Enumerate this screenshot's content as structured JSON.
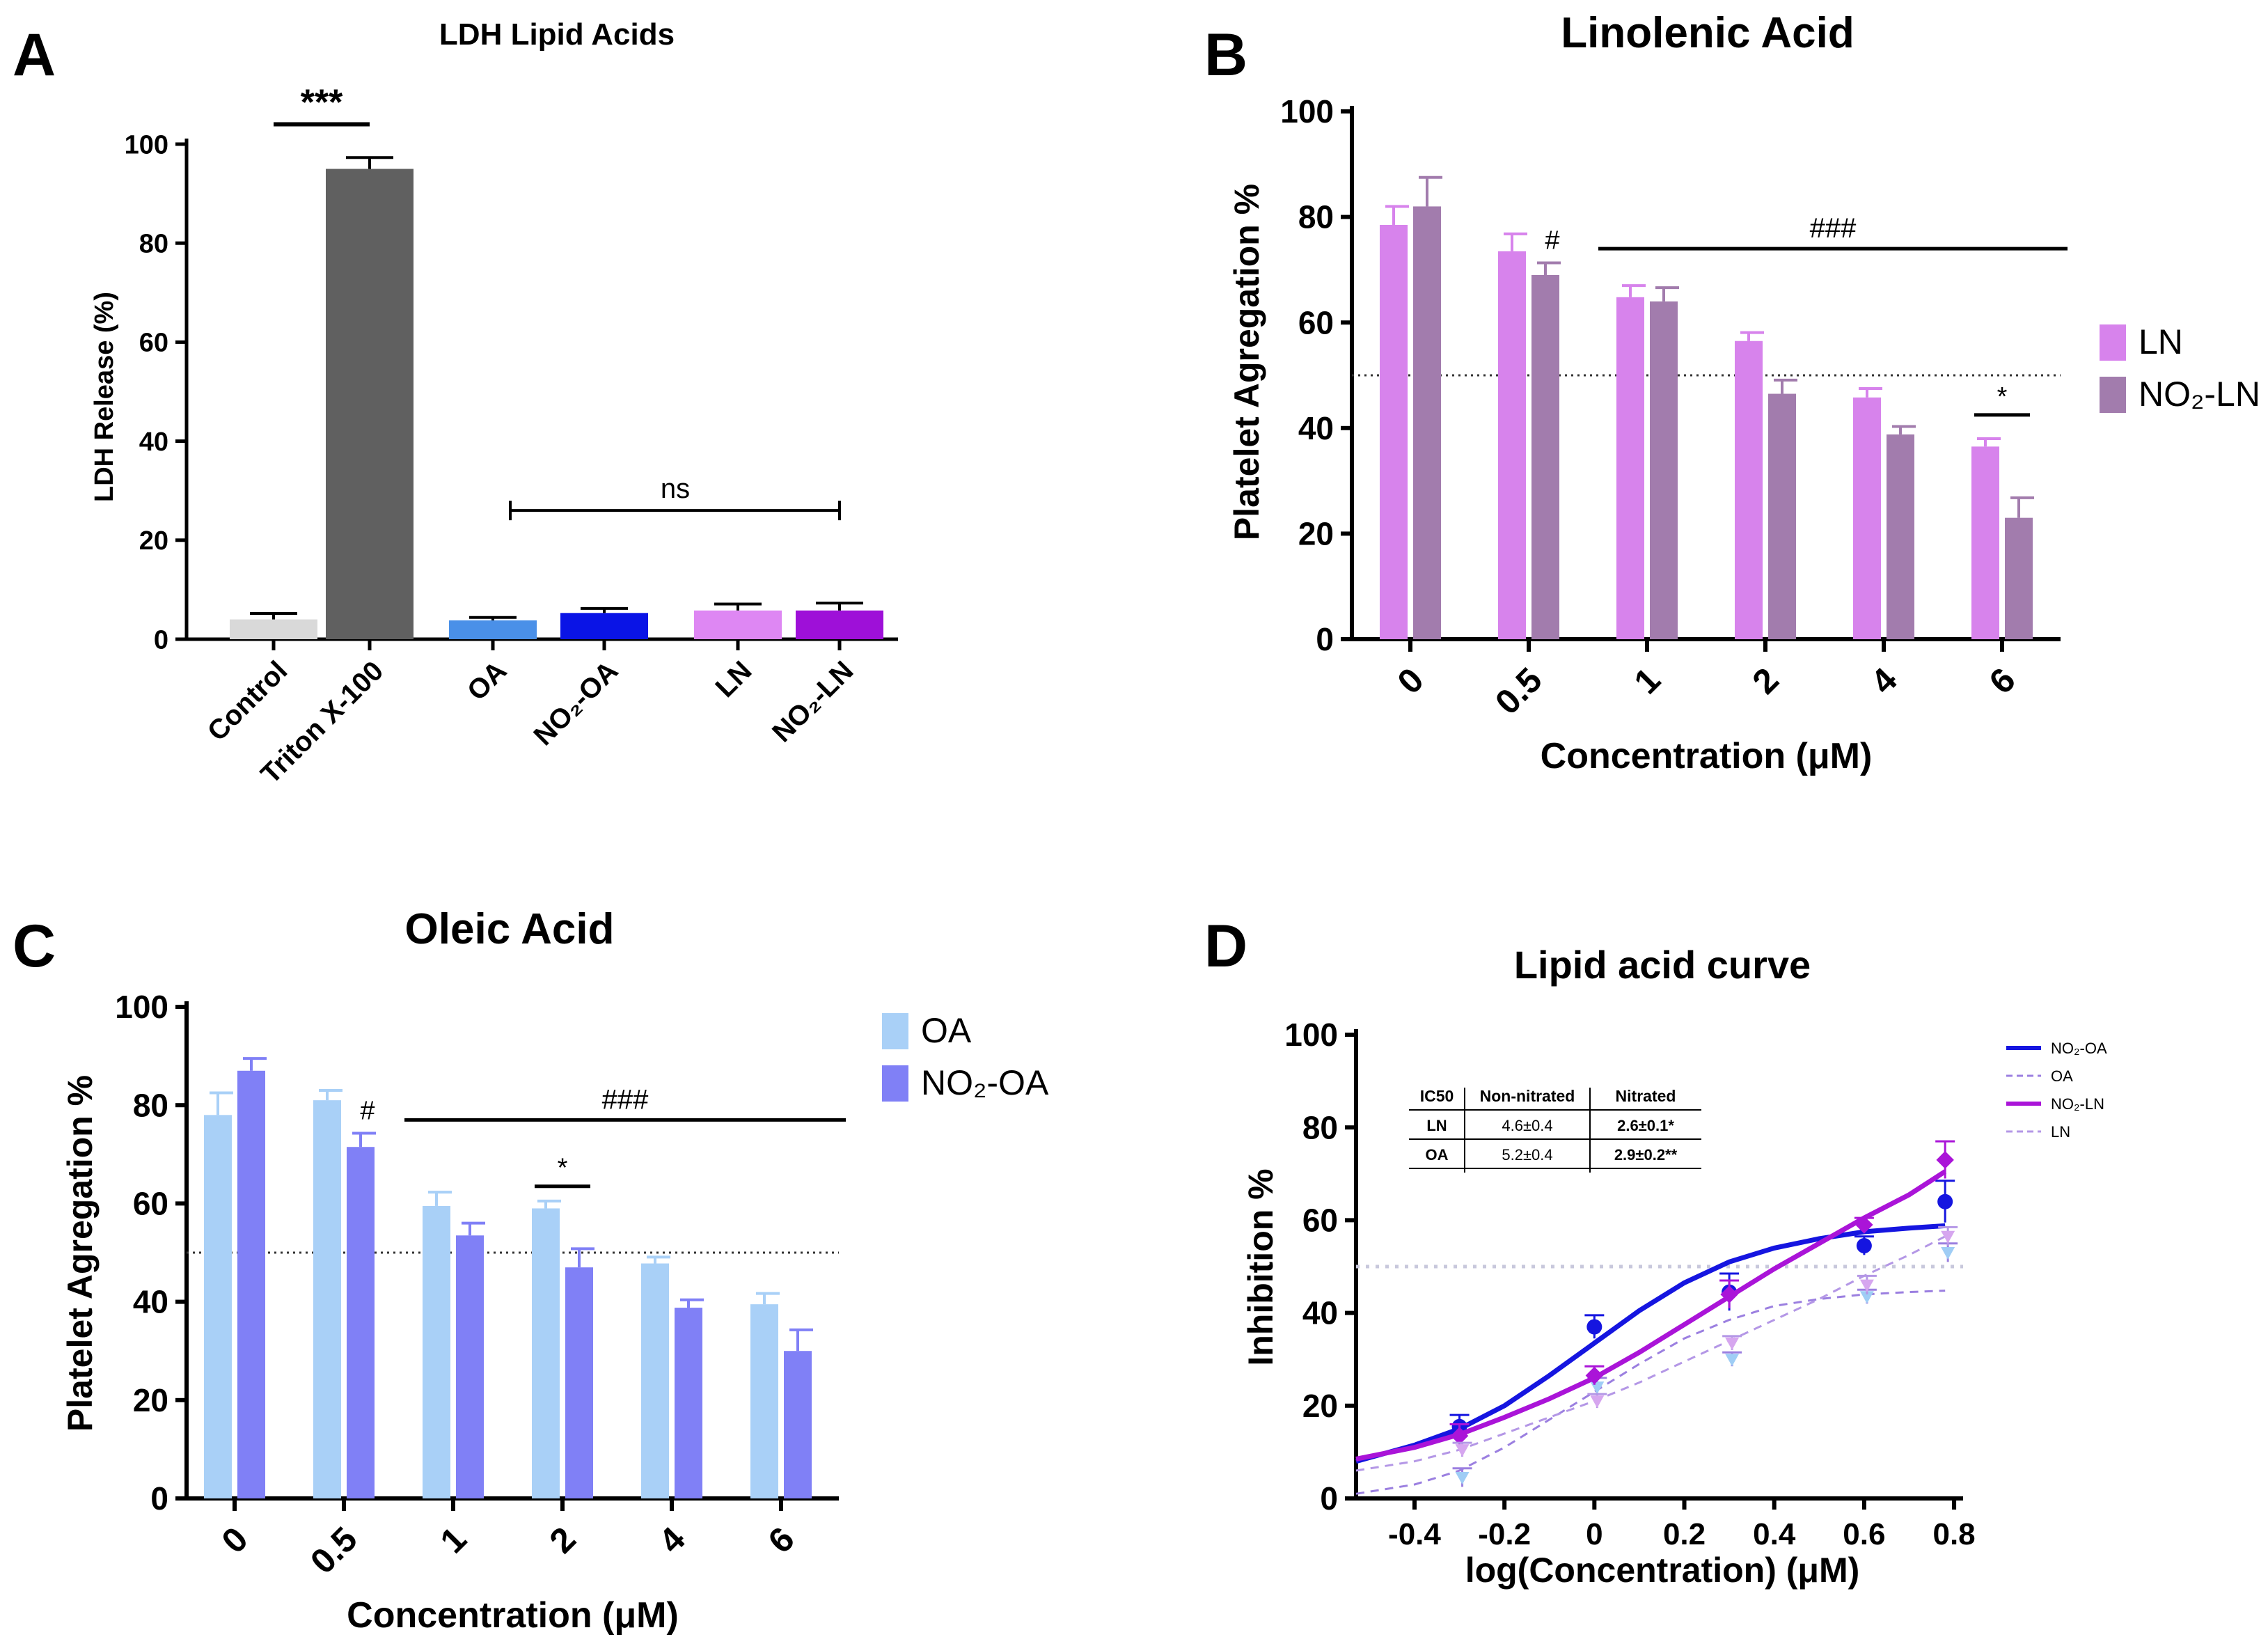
{
  "chart_data": [
    {
      "panel": "A",
      "type": "bar",
      "title": "LDH Lipid Acids",
      "ylabel": "LDH Release (%)",
      "xlabel": "",
      "ylim": [
        0,
        100
      ],
      "yticks": [
        0,
        20,
        40,
        60,
        80,
        100
      ],
      "categories": [
        "Control",
        "Triton X-100",
        "OA",
        "NO₂-OA",
        "LN",
        "NO₂-LN"
      ],
      "values": [
        4,
        95,
        3.8,
        5.3,
        5.8,
        5.8
      ],
      "errors": [
        1.2,
        2.3,
        0.6,
        0.9,
        1.3,
        1.5
      ],
      "colors": [
        "#d9d9d9",
        "#606060",
        "#4a90e8",
        "#0a14e6",
        "#de87f3",
        "#9e10d8"
      ],
      "annotations": [
        {
          "text": "***",
          "between": [
            "Control",
            "Triton X-100"
          ],
          "y": 104
        },
        {
          "text": "ns",
          "between": [
            "OA",
            "NO₂-LN"
          ],
          "y": 26
        }
      ]
    },
    {
      "panel": "B",
      "type": "bar",
      "title": "Linolenic Acid",
      "xlabel": "Concentration (μM)",
      "ylabel": "Platelet Agregation %",
      "ylim": [
        0,
        100
      ],
      "yticks": [
        0,
        20,
        40,
        60,
        80,
        100
      ],
      "categories": [
        "0",
        "0.5",
        "1",
        "2",
        "4",
        "6"
      ],
      "reference_line": 50,
      "series": [
        {
          "name": "LN",
          "color": "#d783ec",
          "values": [
            78.5,
            73.5,
            64.8,
            56.5,
            45.8,
            36.5
          ],
          "errors": [
            3.5,
            3.3,
            2.2,
            1.6,
            1.7,
            1.5
          ]
        },
        {
          "name": "NO₂-LN",
          "color": "#a27cad",
          "values": [
            82,
            69,
            64,
            46.5,
            38.8,
            23
          ],
          "errors": [
            5.5,
            2.3,
            2.6,
            2.6,
            1.5,
            3.8
          ]
        }
      ],
      "annotations": [
        {
          "text": "#",
          "category": "0.5"
        },
        {
          "text": "###",
          "from": "1",
          "to": "6",
          "y": 74
        },
        {
          "text": "*",
          "category": "6",
          "y": 42.5
        }
      ]
    },
    {
      "panel": "C",
      "type": "bar",
      "title": "Oleic Acid",
      "xlabel": "Concentration (μM)",
      "ylabel": "Platelet Agregation %",
      "ylim": [
        0,
        100
      ],
      "yticks": [
        0,
        20,
        40,
        60,
        80,
        100
      ],
      "categories": [
        "0",
        "0.5",
        "1",
        "2",
        "4",
        "6"
      ],
      "reference_line": 50,
      "series": [
        {
          "name": "OA",
          "color": "#a9d0f7",
          "values": [
            78,
            81,
            59.5,
            59,
            47.8,
            39.5
          ],
          "errors": [
            4.5,
            2,
            2.8,
            1.5,
            1.3,
            2.2
          ]
        },
        {
          "name": "NO₂-OA",
          "color": "#8080f6",
          "values": [
            87,
            71.5,
            53.5,
            47,
            38.8,
            30
          ],
          "errors": [
            2.5,
            2.8,
            2.5,
            3.8,
            1.6,
            4.3
          ]
        }
      ],
      "annotations": [
        {
          "text": "#",
          "category": "0.5"
        },
        {
          "text": "###",
          "from": "1",
          "to": "6",
          "y": 77
        },
        {
          "text": "*",
          "category": "2",
          "y": 63.5
        }
      ]
    },
    {
      "panel": "D",
      "type": "line",
      "title": "Lipid acid curve",
      "xlabel": "log(Concentration) (μM)",
      "ylabel": "Inhibition %",
      "xlim": [
        -0.53,
        0.82
      ],
      "ylim": [
        0,
        100
      ],
      "xticks": [
        -0.4,
        -0.2,
        0,
        0.2,
        0.4,
        0.6,
        0.8
      ],
      "yticks": [
        0,
        20,
        40,
        60,
        80,
        100
      ],
      "reference_line": 50,
      "series": [
        {
          "name": "NO₂-OA",
          "color": "#1515e0",
          "style": "solid",
          "x": [
            -0.3,
            0,
            0.3,
            0.6,
            0.78
          ],
          "y": [
            15.5,
            37,
            44.5,
            54.5,
            64
          ],
          "errors": [
            2.5,
            2.5,
            4,
            2,
            4.5
          ],
          "fit_x": [
            -0.53,
            -0.4,
            -0.3,
            -0.2,
            -0.1,
            0,
            0.1,
            0.2,
            0.3,
            0.4,
            0.5,
            0.6,
            0.7,
            0.78
          ],
          "fit_y": [
            8,
            11.5,
            15,
            20,
            26.5,
            33.5,
            40.5,
            46.5,
            51,
            54,
            56,
            57.5,
            58.3,
            58.8
          ]
        },
        {
          "name": "OA",
          "color": "#9b7fe0",
          "style": "dashed",
          "x": [
            -0.3,
            0,
            0.3,
            0.6,
            0.78
          ],
          "y": [
            4.5,
            24,
            30,
            43.5,
            53
          ],
          "errors": [
            2,
            2,
            1.5,
            1.5,
            2
          ],
          "fit_x": [
            -0.53,
            -0.4,
            -0.3,
            -0.2,
            -0.1,
            0,
            0.1,
            0.2,
            0.3,
            0.4,
            0.5,
            0.6,
            0.7,
            0.78
          ],
          "fit_y": [
            1,
            3,
            6,
            11,
            17,
            23,
            29,
            34.5,
            38.5,
            41.5,
            43,
            44,
            44.5,
            44.8
          ]
        },
        {
          "name": "NO₂-LN",
          "color": "#aa14d8",
          "style": "solid",
          "x": [
            -0.3,
            0,
            0.3,
            0.6,
            0.78
          ],
          "y": [
            13.5,
            26.5,
            44,
            59,
            73
          ],
          "errors": [
            2.5,
            2,
            3,
            1.5,
            4
          ],
          "fit_x": [
            -0.53,
            -0.4,
            -0.3,
            -0.2,
            -0.1,
            0,
            0.1,
            0.2,
            0.3,
            0.4,
            0.5,
            0.6,
            0.7,
            0.78
          ],
          "fit_y": [
            8.5,
            11,
            13.8,
            17.5,
            21.5,
            26,
            31.5,
            37.5,
            43.5,
            49.5,
            55,
            60.5,
            65.5,
            70.5
          ]
        },
        {
          "name": "LN",
          "color": "#b497e6",
          "style": "dashed",
          "x": [
            -0.3,
            0,
            0.3,
            0.6,
            0.78
          ],
          "y": [
            10.5,
            21,
            33.5,
            46,
            56.5
          ],
          "errors": [
            1.5,
            1.5,
            1.5,
            2,
            2
          ],
          "fit_x": [
            -0.53,
            -0.4,
            -0.3,
            -0.2,
            -0.1,
            0,
            0.1,
            0.2,
            0.3,
            0.4,
            0.5,
            0.6,
            0.7,
            0.78
          ],
          "fit_y": [
            6,
            8,
            10.5,
            14,
            17.5,
            21,
            25,
            29.5,
            34,
            38.5,
            43,
            48,
            52.5,
            56.5
          ]
        }
      ],
      "ic50_table": {
        "header": [
          "IC50",
          "Non-nitrated",
          "Nitrated"
        ],
        "rows": [
          [
            "LN",
            "4.6±0.4",
            "2.6±0.1*"
          ],
          [
            "OA",
            "5.2±0.4",
            "2.9±0.2**"
          ]
        ]
      }
    }
  ],
  "panel_letters": [
    "A",
    "B",
    "C",
    "D"
  ]
}
